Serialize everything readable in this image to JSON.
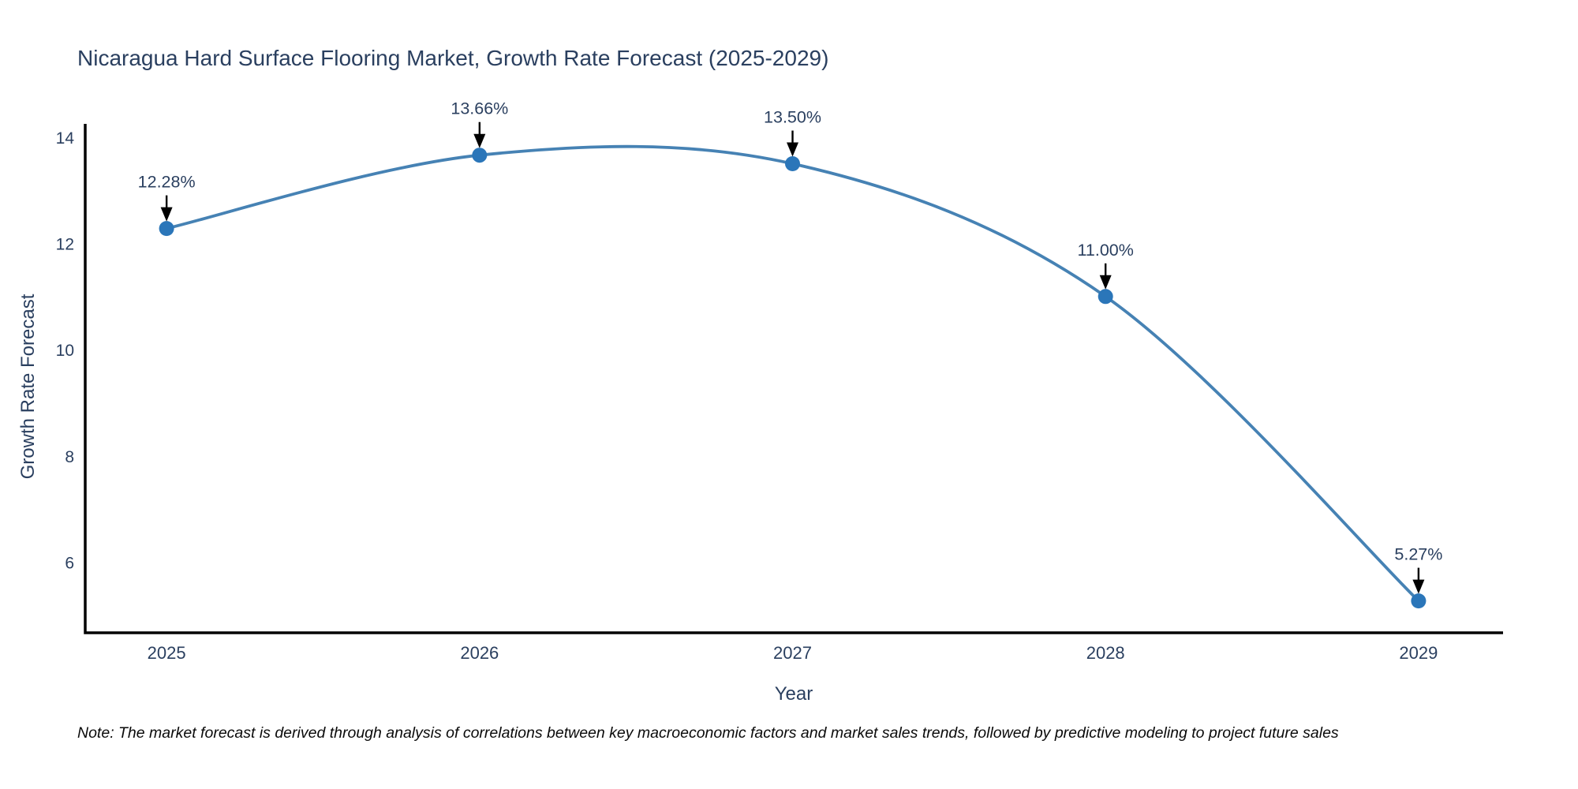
{
  "note": "Note: The market forecast is derived through analysis of correlations between key macroeconomic factors and market sales trends, followed by predictive modeling to project future sales",
  "chart_data": {
    "type": "line",
    "title": "Nicaragua Hard Surface Flooring Market, Growth Rate Forecast (2025-2029)",
    "xlabel": "Year",
    "ylabel": "Growth Rate Forecast",
    "x": [
      2025,
      2026,
      2027,
      2028,
      2029
    ],
    "x_tick_labels": [
      "2025",
      "2026",
      "2027",
      "2028",
      "2029"
    ],
    "series": [
      {
        "name": "Growth Rate Forecast",
        "values": [
          12.28,
          13.66,
          13.5,
          11.0,
          5.27
        ]
      }
    ],
    "annotations": [
      {
        "x": 2025,
        "y": 12.28,
        "label": "12.28%"
      },
      {
        "x": 2026,
        "y": 13.66,
        "label": "13.66%"
      },
      {
        "x": 2027,
        "y": 13.5,
        "label": "13.50%"
      },
      {
        "x": 2028,
        "y": 11.0,
        "label": "11.00%"
      },
      {
        "x": 2029,
        "y": 5.27,
        "label": "5.27%"
      }
    ],
    "yticks": [
      6,
      8,
      10,
      12,
      14
    ],
    "ylim": [
      4.67,
      14.25
    ],
    "xlim": [
      2024.74,
      2029.27
    ],
    "grid": false,
    "legend": false,
    "line_shape": "spline",
    "colors": {
      "line": "#4682b4",
      "marker": "#2b76b9",
      "axis": "#000000",
      "text": "#2a3f5f",
      "annotation_text": "#2a3f5f",
      "annotation_arrow": "#000000",
      "note_text": "#0a0a0a",
      "background": "#ffffff"
    }
  }
}
